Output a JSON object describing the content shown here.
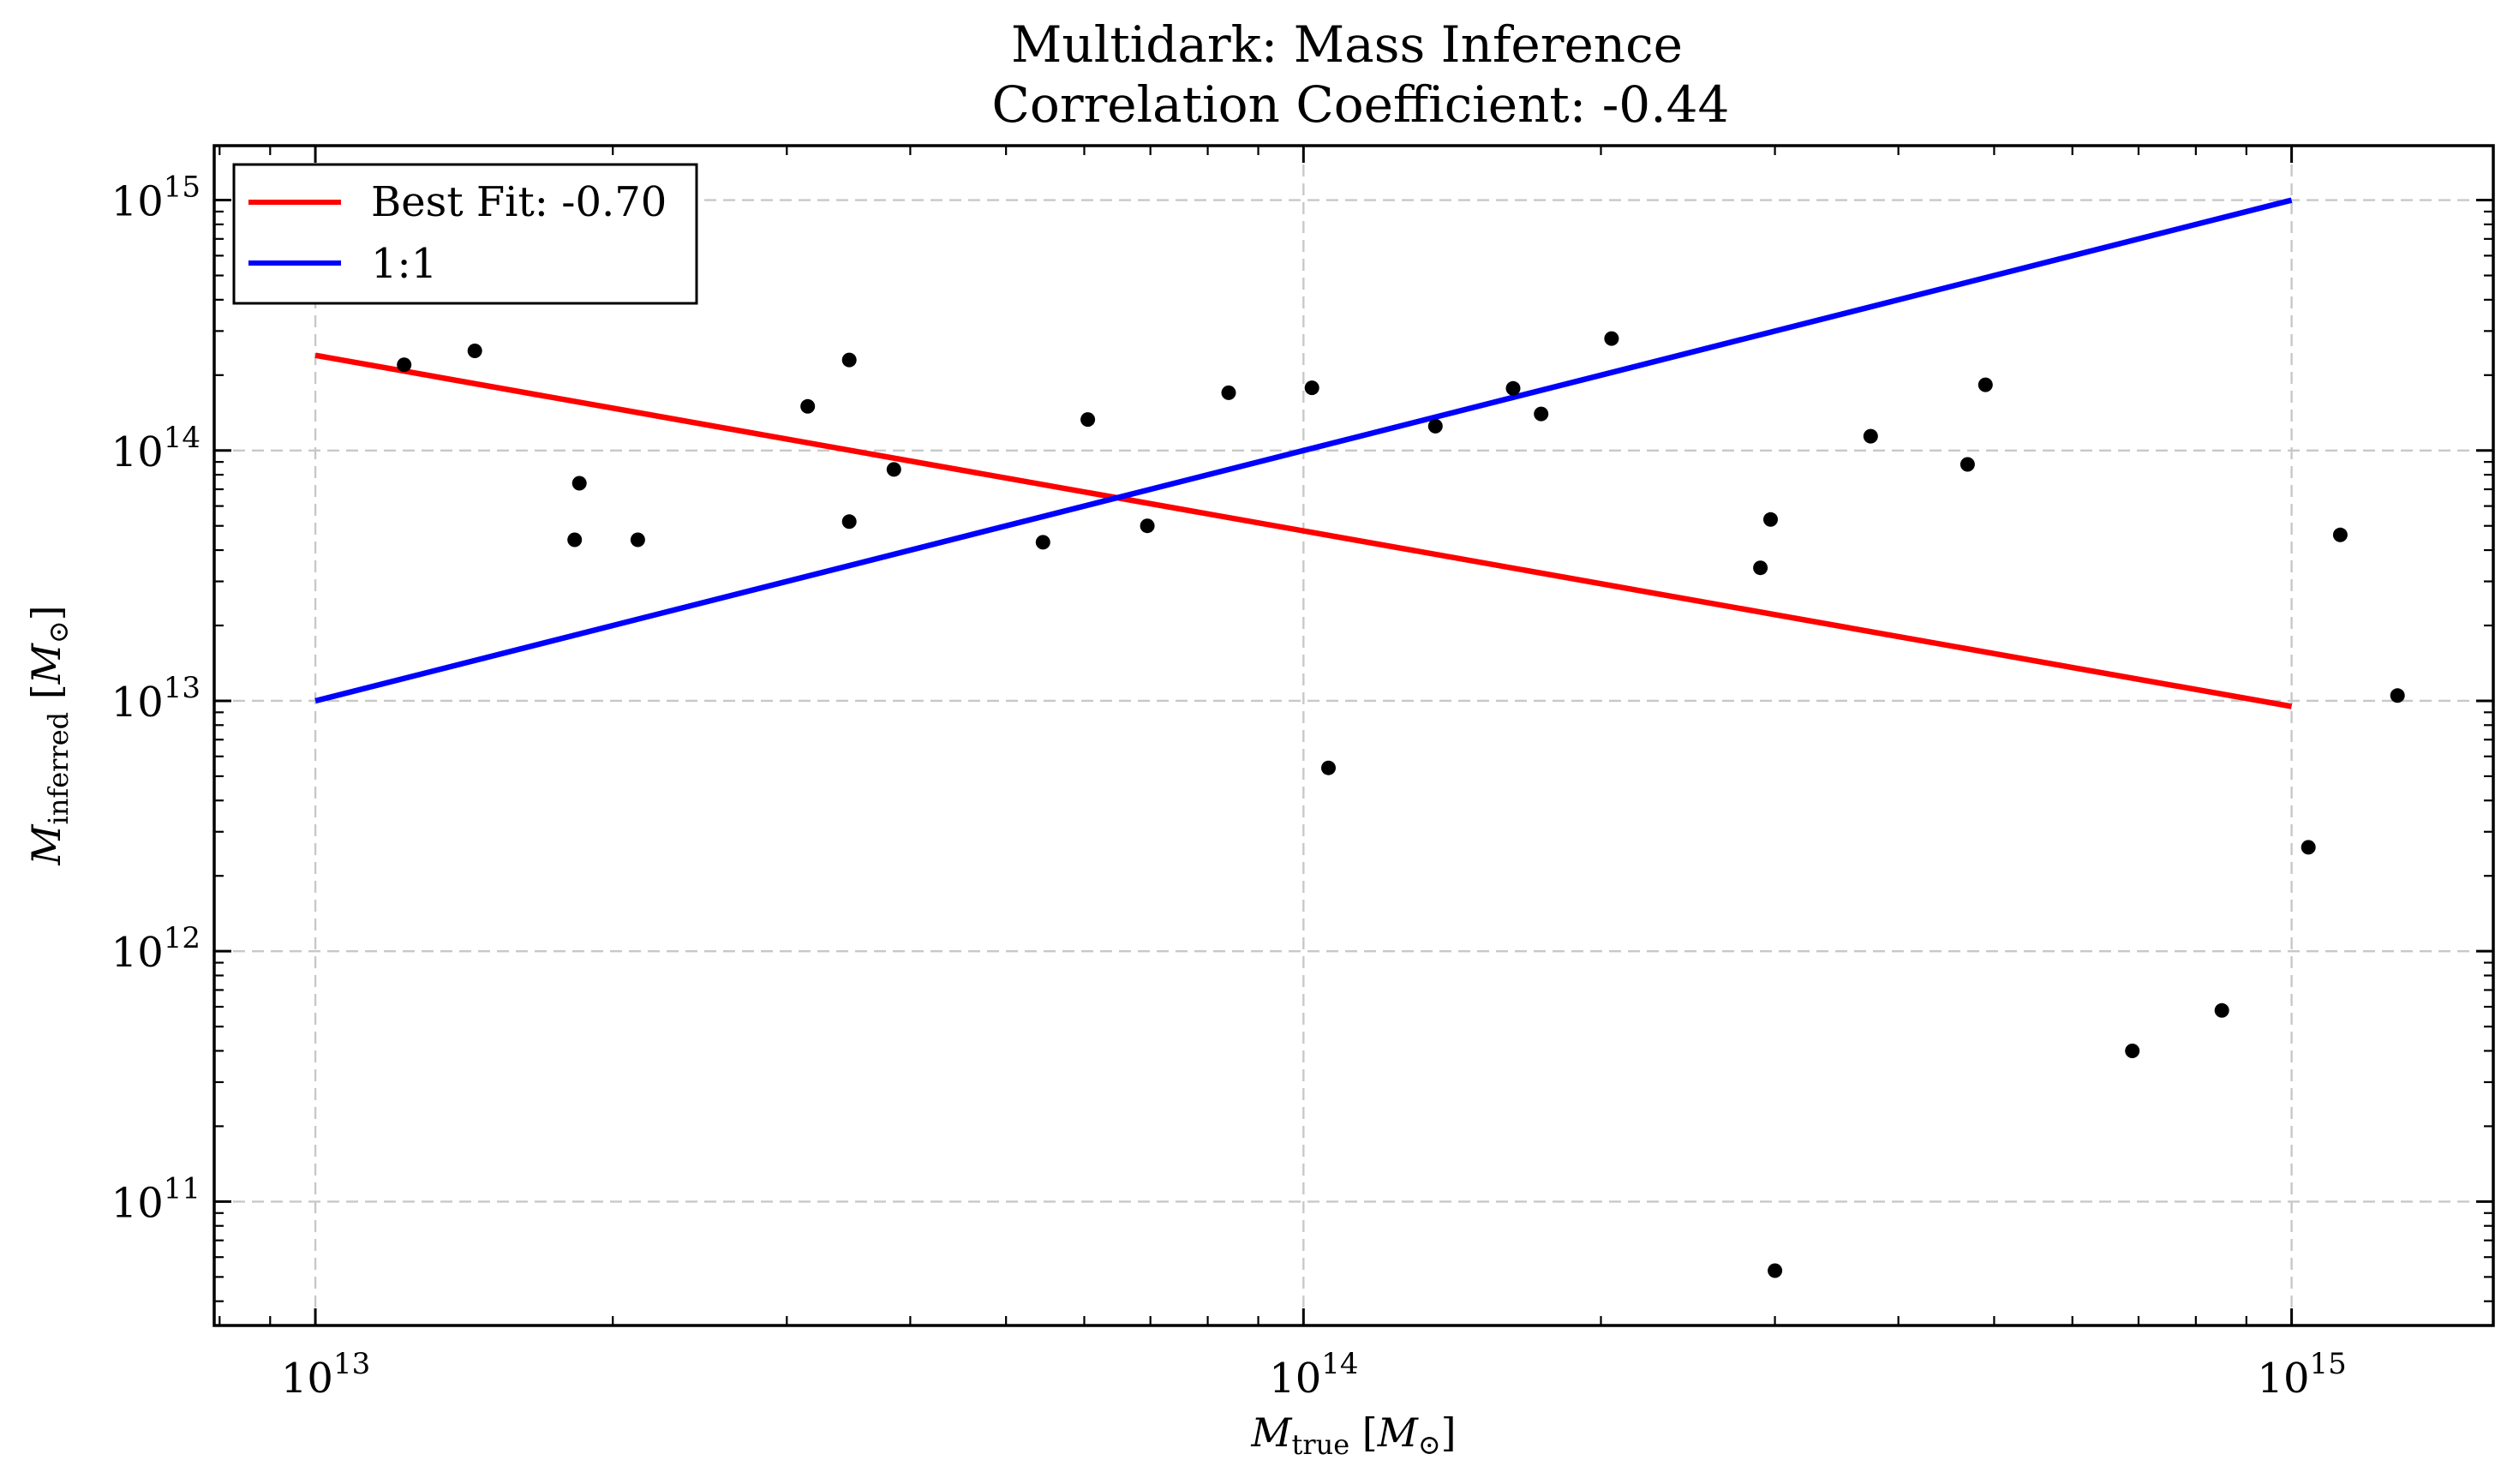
{
  "chart_data": {
    "type": "scatter",
    "title": "Multidark: Mass Inference",
    "subtitle": "Correlation Coefficient: -0.44",
    "xlabel": {
      "symbol": "M",
      "subscript": "true",
      "unit_open": " [",
      "unit_symbol": "M",
      "unit_sub": "⊙",
      "unit_close": "]"
    },
    "ylabel": {
      "symbol": "M",
      "subscript": "inferred",
      "unit_open": " [",
      "unit_symbol": "M",
      "unit_sub": "⊙",
      "unit_close": "]"
    },
    "x_scale": "log",
    "y_scale": "log",
    "xlim": [
      7900000000000.0,
      1600000000000000.0
    ],
    "ylim": [
      32000000000.0,
      1650000000000000.0
    ],
    "grid": true,
    "legend_position": "top-left",
    "x_ticks": [
      {
        "value": 10000000000000.0,
        "base": "10",
        "exp": "13"
      },
      {
        "value": 100000000000000.0,
        "base": "10",
        "exp": "14"
      },
      {
        "value": 1000000000000000.0,
        "base": "10",
        "exp": "15"
      }
    ],
    "y_ticks": [
      {
        "value": 100000000000.0,
        "base": "10",
        "exp": "11"
      },
      {
        "value": 1000000000000.0,
        "base": "10",
        "exp": "12"
      },
      {
        "value": 10000000000000.0,
        "base": "10",
        "exp": "13"
      },
      {
        "value": 100000000000000.0,
        "base": "10",
        "exp": "14"
      },
      {
        "value": 1000000000000000.0,
        "base": "10",
        "exp": "15"
      }
    ],
    "series": [
      {
        "name": "Best Fit: -0.70",
        "kind": "line",
        "color": "#ff0000",
        "x": [
          10000000000000.0,
          1000000000000000.0
        ],
        "y": [
          240000000000000.0,
          9500000000000.0
        ]
      },
      {
        "name": "1:1",
        "kind": "line",
        "color": "#0000ff",
        "x": [
          10000000000000.0,
          1000000000000000.0
        ],
        "y": [
          10000000000000.0,
          1000000000000000.0
        ]
      },
      {
        "kind": "scatter",
        "color": "#000000",
        "points": [
          [
            12300000000000.0,
            220000000000000.0
          ],
          [
            14500000000000.0,
            250000000000000.0
          ],
          [
            18500000000000.0,
            74000000000000.0
          ],
          [
            18300000000000.0,
            44000000000000.0
          ],
          [
            21200000000000.0,
            44000000000000.0
          ],
          [
            31500000000000.0,
            150000000000000.0
          ],
          [
            34700000000000.0,
            230000000000000.0
          ],
          [
            34700000000000.0,
            52000000000000.0
          ],
          [
            38500000000000.0,
            84000000000000.0
          ],
          [
            54500000000000.0,
            43000000000000.0
          ],
          [
            60500000000000.0,
            133000000000000.0
          ],
          [
            69500000000000.0,
            50000000000000.0
          ],
          [
            84000000000000.0,
            170000000000000.0
          ],
          [
            102000000000000.0,
            178000000000000.0
          ],
          [
            106000000000000.0,
            5400000000000.0
          ],
          [
            136000000000000.0,
            125000000000000.0
          ],
          [
            163000000000000.0,
            177000000000000.0
          ],
          [
            174000000000000.0,
            140000000000000.0
          ],
          [
            205000000000000.0,
            280000000000000.0
          ],
          [
            290000000000000.0,
            34000000000000.0
          ],
          [
            297000000000000.0,
            53000000000000.0
          ],
          [
            300000000000000.0,
            53000000000.0
          ],
          [
            375000000000000.0,
            114000000000000.0
          ],
          [
            470000000000000.0,
            88000000000000.0
          ],
          [
            490000000000000.0,
            183000000000000.0
          ],
          [
            690000000000000.0,
            400000000000.0
          ],
          [
            850000000000000.0,
            580000000000.0
          ],
          [
            1040000000000000.0,
            2600000000000.0
          ],
          [
            1120000000000000.0,
            46000000000000.0
          ],
          [
            1280000000000000.0,
            10500000000000.0
          ]
        ]
      }
    ]
  }
}
